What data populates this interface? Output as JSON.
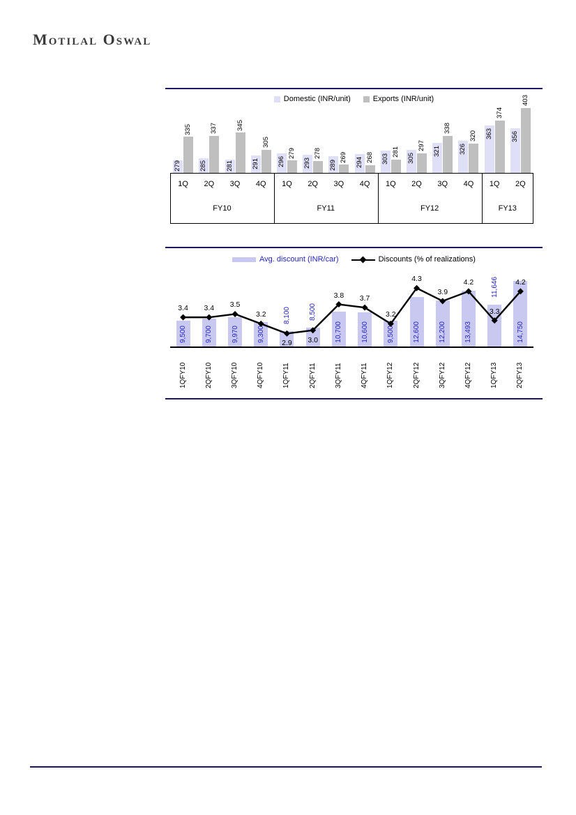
{
  "page": {
    "brand_logo": "Motilal Oswal"
  },
  "colors": {
    "accent_rule": "#1b1464",
    "domestic_bar": "#dfdff7",
    "exports_bar": "#bfbfbf",
    "discount_bar": "#c8c8f0",
    "blue_value_text": "#2425c4",
    "line_series": "#000000"
  },
  "chart_data": [
    {
      "type": "bar",
      "title": "Realizations per unit by quarter",
      "legend_position": "top",
      "categories": [
        "1Q",
        "2Q",
        "3Q",
        "4Q",
        "1Q",
        "2Q",
        "3Q",
        "4Q",
        "1Q",
        "2Q",
        "3Q",
        "4Q",
        "1Q",
        "2Q"
      ],
      "group_labels": [
        "FY10",
        "FY11",
        "FY12",
        "FY13"
      ],
      "group_sizes": [
        4,
        4,
        4,
        2
      ],
      "series": [
        {
          "name": "Domestic (INR/unit)",
          "values": [
            279,
            285,
            281,
            291,
            296,
            293,
            289,
            294,
            303,
            305,
            321,
            326,
            363,
            356
          ]
        },
        {
          "name": "Exports (INR/unit)",
          "values": [
            335,
            337,
            345,
            305,
            279,
            278,
            269,
            268,
            281,
            297,
            338,
            320,
            374,
            403
          ]
        }
      ],
      "ylim": [
        250,
        410
      ],
      "grid": false
    },
    {
      "type": "bar+line",
      "title": "Average discounts by quarter",
      "legend_position": "top",
      "categories": [
        "1QFY10",
        "2QFY10",
        "3QFY10",
        "4QFY10",
        "1QFY11",
        "2QFY11",
        "3QFY11",
        "4QFY11",
        "1QFY12",
        "2QFY12",
        "3QFY12",
        "4QFY12",
        "1QFY13",
        "2QFY13"
      ],
      "series": [
        {
          "name": "Avg. discount (INR/car)",
          "type": "bar",
          "values": [
            9500,
            9700,
            9970,
            9300,
            8100,
            8500,
            10700,
            10600,
            9500,
            12600,
            12200,
            13493,
            11646,
            14750
          ],
          "labels": [
            "9,500",
            "9,700",
            "9,970",
            "9,300",
            "8,100",
            "8,500",
            "10,700",
            "10,600",
            "9,500",
            "12,600",
            "12,200",
            "13,493",
            "11,646",
            "14,750"
          ]
        },
        {
          "name": "Discounts (% of realizations)",
          "type": "line",
          "values": [
            3.4,
            3.4,
            3.5,
            3.2,
            2.9,
            3.0,
            3.8,
            3.7,
            3.2,
            4.3,
            3.9,
            4.2,
            3.3,
            4.2
          ],
          "labels": [
            "3.4",
            "3.4",
            "3.5",
            "3.2",
            "2.9",
            "3.0",
            "3.8",
            "3.7",
            "3.2",
            "4.3",
            "3.9",
            "4.2",
            "3.3",
            "4.2"
          ]
        }
      ],
      "bar_ylim": [
        6000,
        16000
      ],
      "line_ylim": [
        2.5,
        4.8
      ],
      "bar_labels_outside_idx": [
        4,
        5,
        12
      ],
      "line_labels_below_idx": [
        4,
        5
      ],
      "grid": false
    }
  ]
}
